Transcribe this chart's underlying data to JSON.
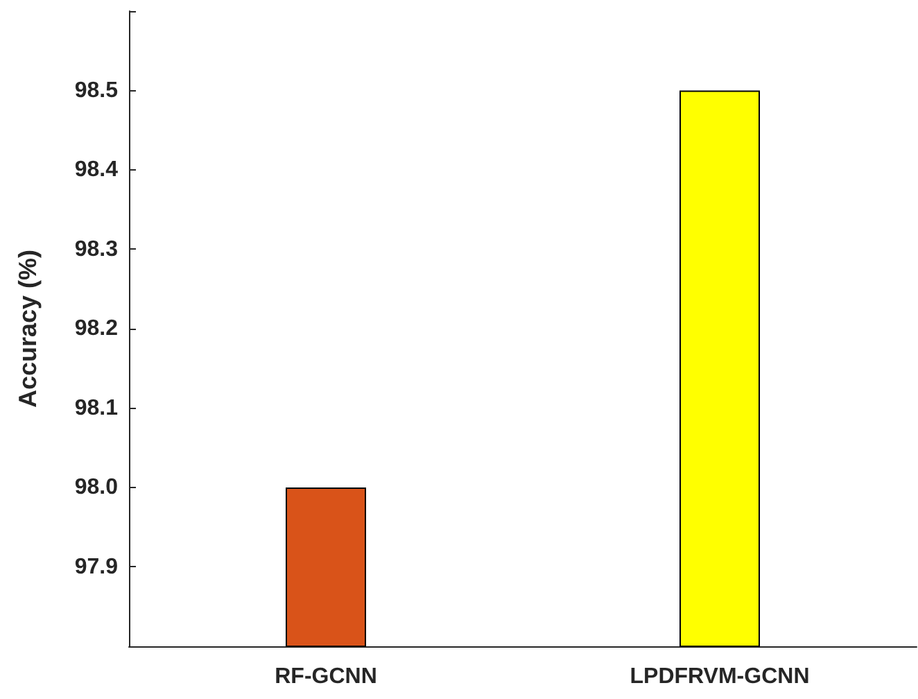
{
  "chart_data": {
    "type": "bar",
    "ylabel": "Accuracy (%)",
    "categories": [
      "RF-GCNN",
      "LPDFRVM-GCNN"
    ],
    "values": [
      98.0,
      98.5
    ],
    "colors": [
      "#d95319",
      "#ffff00"
    ],
    "ylim": [
      97.8,
      98.6
    ],
    "yticks": [
      {
        "value": 97.8,
        "label": null
      },
      {
        "value": 97.9,
        "label": "97.9"
      },
      {
        "value": 98.0,
        "label": "98.0"
      },
      {
        "value": 98.1,
        "label": "98.1"
      },
      {
        "value": 98.2,
        "label": "98.2"
      },
      {
        "value": 98.3,
        "label": "98.3"
      },
      {
        "value": 98.4,
        "label": "98.4"
      },
      {
        "value": 98.5,
        "label": "98.5"
      },
      {
        "value": 98.6,
        "label": null
      }
    ],
    "grid": false
  }
}
